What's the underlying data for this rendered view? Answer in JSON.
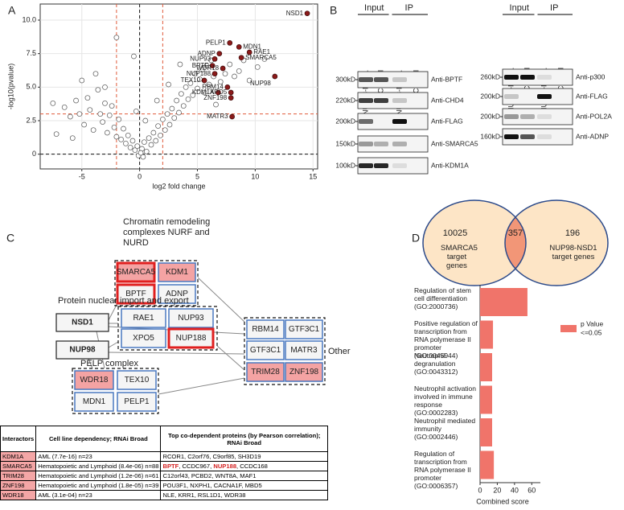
{
  "panel_labels": [
    "A",
    "B",
    "C",
    "D"
  ],
  "chart_data": [
    {
      "type": "scatter",
      "ylabel": "-log10(pvalue)",
      "xlabel": "log2 fold change",
      "xlim": [
        -8.6,
        15.4
      ],
      "ylim": [
        -1.1,
        11.2
      ],
      "xticks": [
        -5,
        0,
        5,
        10,
        15
      ],
      "yticks": [
        0,
        2.5,
        {
          "value": 5,
          "label": "5.0"
        },
        7.5,
        {
          "value": 10,
          "label": "10.0"
        }
      ],
      "grid": true,
      "ref_lines": {
        "red_x": [
          -2,
          2
        ],
        "red_y": 3,
        "black_x": 0,
        "black_y": 0
      },
      "series": [
        {
          "color": "#ffffff",
          "edgecolor": "#555555",
          "x": [
            -7.5,
            -7.2,
            -6.5,
            -6.0,
            -5.8,
            -5.5,
            -5.2,
            -5.0,
            -4.8,
            -4.5,
            -4.3,
            -4.0,
            -3.8,
            -3.6,
            -3.4,
            -3.2,
            -3.0,
            -2.8,
            -2.6,
            -2.4,
            -2.2,
            -2.0,
            -1.8,
            -1.6,
            -1.4,
            -1.2,
            -1.0,
            -0.8,
            -0.6,
            -0.4,
            -0.2,
            -2.0,
            -0.5,
            -3.0,
            0.2,
            0.4,
            0.6,
            0.8,
            1.0,
            1.2,
            1.4,
            1.6,
            1.8,
            2.0,
            2.2,
            2.4,
            2.6,
            2.8,
            3.0,
            3.2,
            3.4,
            3.6,
            3.8,
            4.0,
            4.2,
            4.4,
            4.6,
            4.8,
            5.0,
            5.2,
            5.4,
            5.6,
            5.8,
            6.0,
            6.2,
            6.4,
            6.6,
            7.0,
            7.4,
            7.8,
            8.2,
            8.6,
            9.0,
            9.5,
            10.2,
            10.8,
            3.5,
            2.5,
            1.5,
            0.5,
            -0.3,
            0.3,
            -0.1,
            0.1
          ],
          "y": [
            3.8,
            1.5,
            3.5,
            2.8,
            1.2,
            4.0,
            3.0,
            5.5,
            2.2,
            4.2,
            3.3,
            1.8,
            6.0,
            4.8,
            3.0,
            2.4,
            3.8,
            1.6,
            2.9,
            3.6,
            2.0,
            1.3,
            2.6,
            1.1,
            1.9,
            0.8,
            1.4,
            0.5,
            1.0,
            0.3,
            0.6,
            8.7,
            7.3,
            5.0,
            0.4,
            0.9,
            0.2,
            1.2,
            0.7,
            1.6,
            1.0,
            2.1,
            1.4,
            2.6,
            1.8,
            3.0,
            2.2,
            3.4,
            2.7,
            4.0,
            3.1,
            4.5,
            3.6,
            5.0,
            4.1,
            5.3,
            4.4,
            6.0,
            4.9,
            5.6,
            6.3,
            4.6,
            6.6,
            5.2,
            7.0,
            5.8,
            3.7,
            5.4,
            6.0,
            6.7,
            5.8,
            6.2,
            7.0,
            5.5,
            6.5,
            7.1,
            6.7,
            5.2,
            4.0,
            2.5,
            3.2,
            -0.2,
            -0.1,
            0.1
          ]
        },
        {
          "color": "#8b1a1a",
          "edgecolor": "#3a0a0a",
          "labels": [
            "NSD1",
            "PELP1",
            "MDN1",
            "RAE1",
            "ADNP",
            "SMARCA5",
            "NUP93",
            "BPTF",
            "WDR18",
            "NUP188",
            "NUP98",
            "TEX10",
            "RBM14",
            "KDM1A",
            "XPO5",
            "ZNF198",
            "MATR3"
          ],
          "x": [
            14.5,
            7.8,
            8.6,
            9.5,
            6.9,
            8.8,
            6.5,
            6.3,
            7.2,
            6.5,
            11.7,
            5.6,
            7.6,
            6.8,
            7.9,
            7.9,
            8.0
          ],
          "y": [
            10.5,
            8.3,
            8.0,
            7.6,
            7.5,
            7.2,
            7.1,
            6.6,
            6.4,
            6.0,
            5.8,
            5.5,
            5.0,
            4.6,
            4.6,
            4.2,
            2.8
          ]
        }
      ]
    },
    {
      "type": "barh",
      "xlabel": "Combined score",
      "xlim": [
        0,
        70
      ],
      "xticks": [
        0,
        20,
        40,
        60
      ],
      "legend_title": "p Value",
      "categories": [
        "Regulation of stem cell differentiation (GO:2000736)",
        "Positive regulation of transcription from RNA polymerase II promoter (GO:0045944)",
        "Neutrophil degranulation (GO:0043312)",
        "Neutrophil activation involved in immune response (GO:0002283)",
        "Neutrophil mediated immunity (GO:0002446)",
        "Regulation of transcription from RNA polymerase II promoter (GO:0006357)"
      ],
      "series": [
        {
          "name": "<=0.05",
          "color": "#f0746a",
          "values": [
            55,
            15,
            14,
            14,
            14,
            16
          ]
        }
      ]
    }
  ],
  "blots": [
    {
      "headers": [
        "Input",
        "IP"
      ],
      "lanes": [
        "NUP98-NSD1",
        "Control",
        "NUP98-NSD1",
        "Control"
      ],
      "rows": [
        {
          "mw": "300kD",
          "antibody": "Anti-BPTF"
        },
        {
          "mw": "220kD",
          "antibody": "Anti-CHD4"
        },
        {
          "mw": "200kD",
          "antibody": "Anti-FLAG"
        },
        {
          "mw": "150kD",
          "antibody": "Anti-SMARCA5"
        },
        {
          "mw": "100kD",
          "antibody": "Anti-KDM1A"
        }
      ]
    },
    {
      "headers": [
        "Input",
        "IP"
      ],
      "lanes": [
        "NUP98-NSD1",
        "Control",
        "NUP98-NSD1",
        "Control"
      ],
      "rows": [
        {
          "mw": "260kD",
          "antibody": "Anti-p300"
        },
        {
          "mw": "200kD",
          "antibody": "Anti-FLAG"
        },
        {
          "mw": "200kD",
          "antibody": "Anti-POL2A"
        },
        {
          "mw": "160kD",
          "antibody": "Anti-ADNP"
        }
      ]
    }
  ],
  "network": {
    "hubs": [
      "NSD1",
      "NUP98"
    ],
    "groups": [
      {
        "title": "Chromatin remodeling complexes NURF and NURD",
        "nodes": [
          "SMARCA5",
          "KDM1",
          "BPTF",
          "ADNP"
        ]
      },
      {
        "title": "Protein nuclear import and export",
        "nodes": [
          "RAE1",
          "NUP93",
          "XPO5",
          "NUP188"
        ]
      },
      {
        "title": "PELP complex",
        "nodes": [
          "WDR18",
          "TEX10",
          "MDN1",
          "PELP1"
        ]
      },
      {
        "title": "Other",
        "nodes": [
          "RBM14",
          "GTF3C1",
          "GTF3C1",
          "MATR3",
          "TRIM28",
          "ZNF198"
        ]
      }
    ]
  },
  "table": {
    "header": [
      "Interactors",
      "Cell line dependency; RNAi Broad",
      "Top co-dependent proteins (by Pearson correlation); RNAi Broad"
    ],
    "rows": [
      [
        "KDM1A",
        "AML (7.7e-16) n=23",
        [
          {
            "text": "RCOR1, C2orf76, C9orf85, SH3D19"
          }
        ]
      ],
      [
        "SMARCA5",
        "Hematopoietic and Lymphoid (8.4e-06) n=88",
        [
          {
            "text": "BPTF",
            "highlight": true
          },
          {
            "text": ", CCDC967, "
          },
          {
            "text": "NUP188",
            "highlight": true
          },
          {
            "text": ", CCDC168"
          }
        ]
      ],
      [
        "TRIM28",
        "Hematopoietic and Lymphoid (1.2e-06) n=61",
        [
          {
            "text": "C12orf43, PCBD2, WNT8A, MAF1"
          }
        ]
      ],
      [
        "ZNF198",
        "Hematopoietic and Lymphoid (1.8e-05) n=39",
        [
          {
            "text": "POU3F1, NXPH1, CACNA1F, MBD5"
          }
        ]
      ],
      [
        "WDR18",
        "AML (3.1e-04) n=23",
        [
          {
            "text": "NLE, KRR1, RSL1D1, WDR38"
          }
        ]
      ]
    ]
  },
  "venn": {
    "left": {
      "count": 10025,
      "label": "SMARCA5 target genes"
    },
    "overlap": 357,
    "right": {
      "count": 196,
      "label": "NUP98-NSD1 target genes"
    }
  }
}
